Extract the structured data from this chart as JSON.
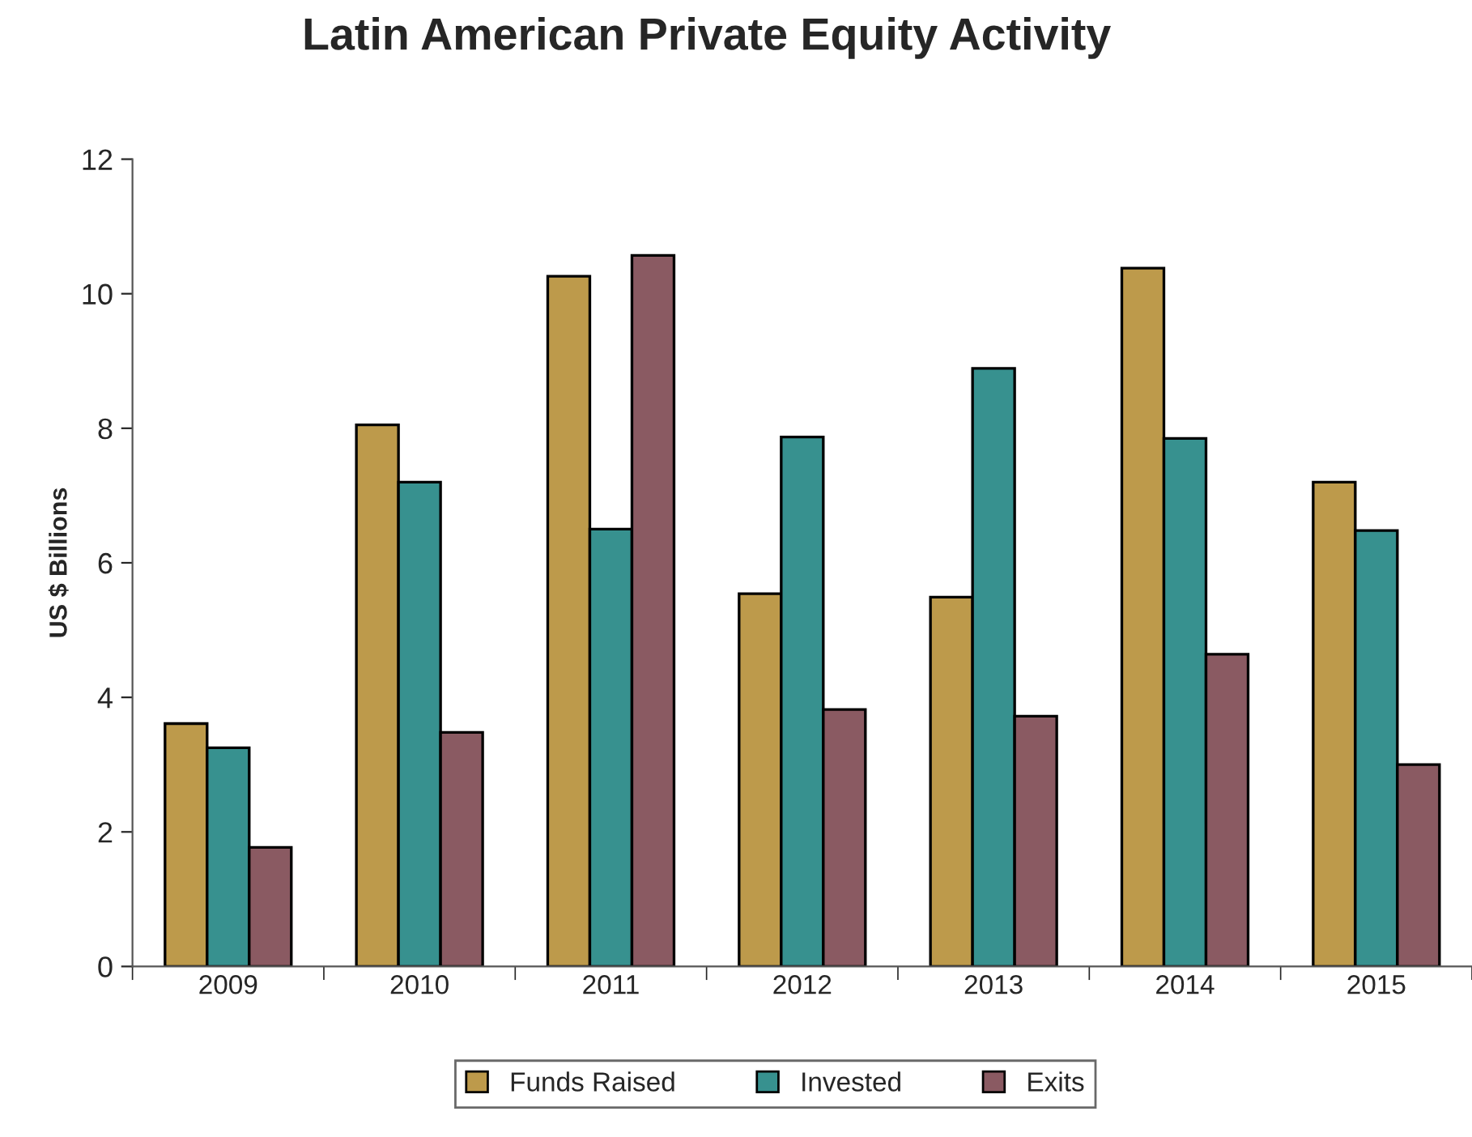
{
  "chart_data": {
    "type": "bar",
    "title": "Latin American Private Equity Activity",
    "ylabel": "US $ Billions",
    "categories": [
      "2009",
      "2010",
      "2011",
      "2012",
      "2013",
      "2014",
      "2015"
    ],
    "series": [
      {
        "name": "Funds Raised",
        "color": "#bd9a4b",
        "values": [
          3.61,
          8.05,
          10.26,
          5.54,
          5.49,
          10.38,
          7.2
        ]
      },
      {
        "name": "Invested",
        "color": "#37918f",
        "values": [
          3.25,
          7.2,
          6.5,
          7.87,
          8.89,
          7.85,
          6.48
        ]
      },
      {
        "name": "Exits",
        "color": "#8a5a62",
        "values": [
          1.77,
          3.48,
          10.57,
          3.82,
          3.72,
          4.64,
          3.0
        ]
      }
    ],
    "ylim": [
      0,
      12
    ],
    "yticks": [
      0,
      2,
      4,
      6,
      8,
      10,
      12
    ],
    "grid": false,
    "legend": "bottom"
  }
}
